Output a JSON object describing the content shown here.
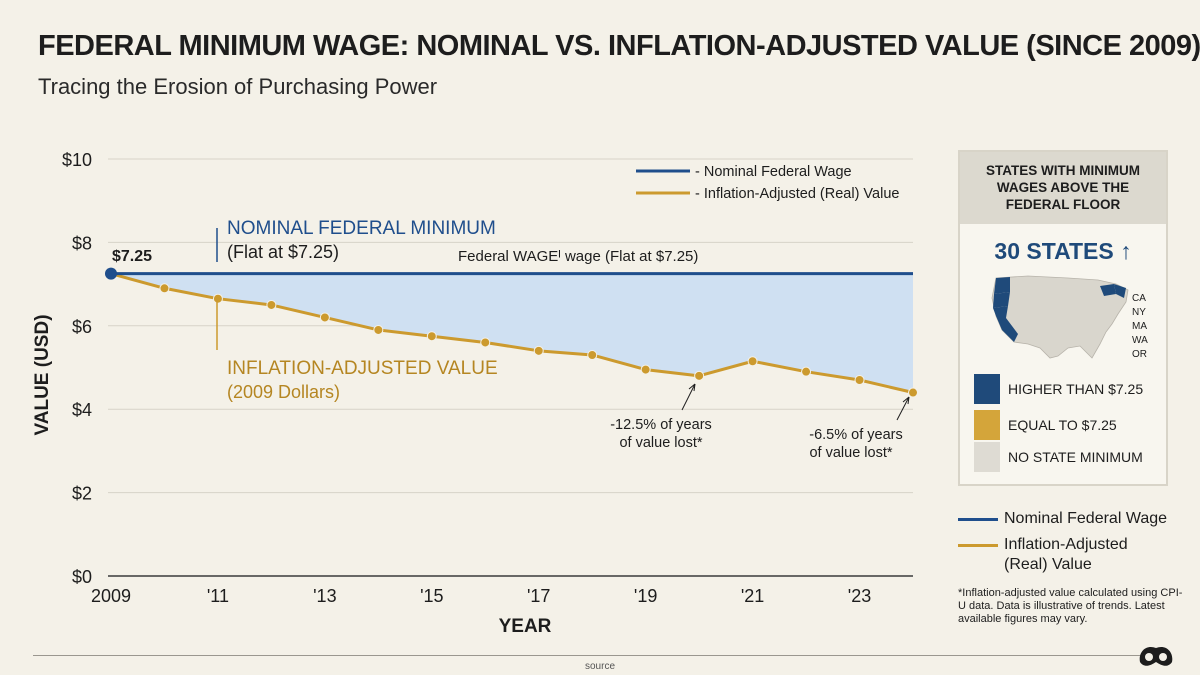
{
  "title": "FEDERAL MINIMUM WAGE: NOMINAL VS. INFLATION-ADJUSTED VALUE (SINCE 2009)",
  "subtitle": "Tracing the Erosion of Purchasing Power",
  "chart_data": {
    "type": "line",
    "xlabel": "YEAR",
    "ylabel": "VALUE (USD)",
    "ylim": [
      0,
      10
    ],
    "xlim": [
      2009,
      2024
    ],
    "y_ticks": [
      "$0",
      "$2",
      "$4",
      "$6",
      "$8",
      "$10"
    ],
    "x_ticks": [
      "2009",
      "'11",
      "'13",
      "'15",
      "'17",
      "'19",
      "'21",
      "'23"
    ],
    "x_tick_values": [
      2009,
      2011,
      2013,
      2015,
      2017,
      2019,
      2021,
      2023
    ],
    "grid": "horizontal",
    "legend_position": "top-right",
    "series": [
      {
        "name": "- Nominal Federal Wage",
        "color": "#1f4e8c",
        "x": [
          2009,
          2024
        ],
        "values": [
          7.25,
          7.25
        ]
      },
      {
        "name": "- Inflation-Adjusted (Real) Value",
        "color": "#cc9a2e",
        "x": [
          2009,
          2010,
          2011,
          2012,
          2013,
          2014,
          2015,
          2016,
          2017,
          2018,
          2019,
          2020,
          2021,
          2022,
          2023,
          2024
        ],
        "values": [
          7.25,
          6.9,
          6.65,
          6.5,
          6.2,
          5.9,
          5.75,
          5.6,
          5.4,
          5.3,
          4.95,
          4.8,
          5.15,
          4.9,
          4.7,
          4.4
        ]
      }
    ],
    "start_label": "$7.25",
    "annotations": {
      "nominal_title": "NOMINAL FEDERAL MINIMUM",
      "nominal_sub": "(Flat at $7.25)",
      "line_label": "Federal WAGEᴵ wage (Flat at $7.25)",
      "real_title": "INFLATION-ADJUSTED VALUE",
      "real_sub": "(2009 Dollars)",
      "note1_line1": "-12.5% of years",
      "note1_line2": "of value lost*",
      "note2_line1": "-6.5% of years",
      "note2_line2": "of value lost*"
    }
  },
  "sidebar": {
    "heading": "STATES WITH MINIMUM WAGES ABOVE THE FEDERAL FLOOR",
    "count": "30 STATES",
    "count_icon": "up-arrow-icon",
    "states": [
      "CA",
      "NY",
      "MA",
      "WA",
      "OR"
    ],
    "categories": [
      {
        "label": "HIGHER THAN $7.25",
        "color": "#1f4a7a"
      },
      {
        "label": "EQUAL TO $7.25",
        "color": "#d4a53a"
      },
      {
        "label": "NO STATE MINIMUM",
        "color": "#dedbd3"
      }
    ]
  },
  "legend2": {
    "nominal": "Nominal Federal Wage",
    "real": "Inflation-Adjusted (Real) Value"
  },
  "footnote": "*Inflation-adjusted value calculated using CPI-U data. Data is illustrative of trends. Latest available figures may vary.",
  "source": "source",
  "colors": {
    "nominal": "#1f4e8c",
    "real": "#cc9a2e",
    "fill": "#cfe0f2",
    "background": "#f4f1e8"
  }
}
